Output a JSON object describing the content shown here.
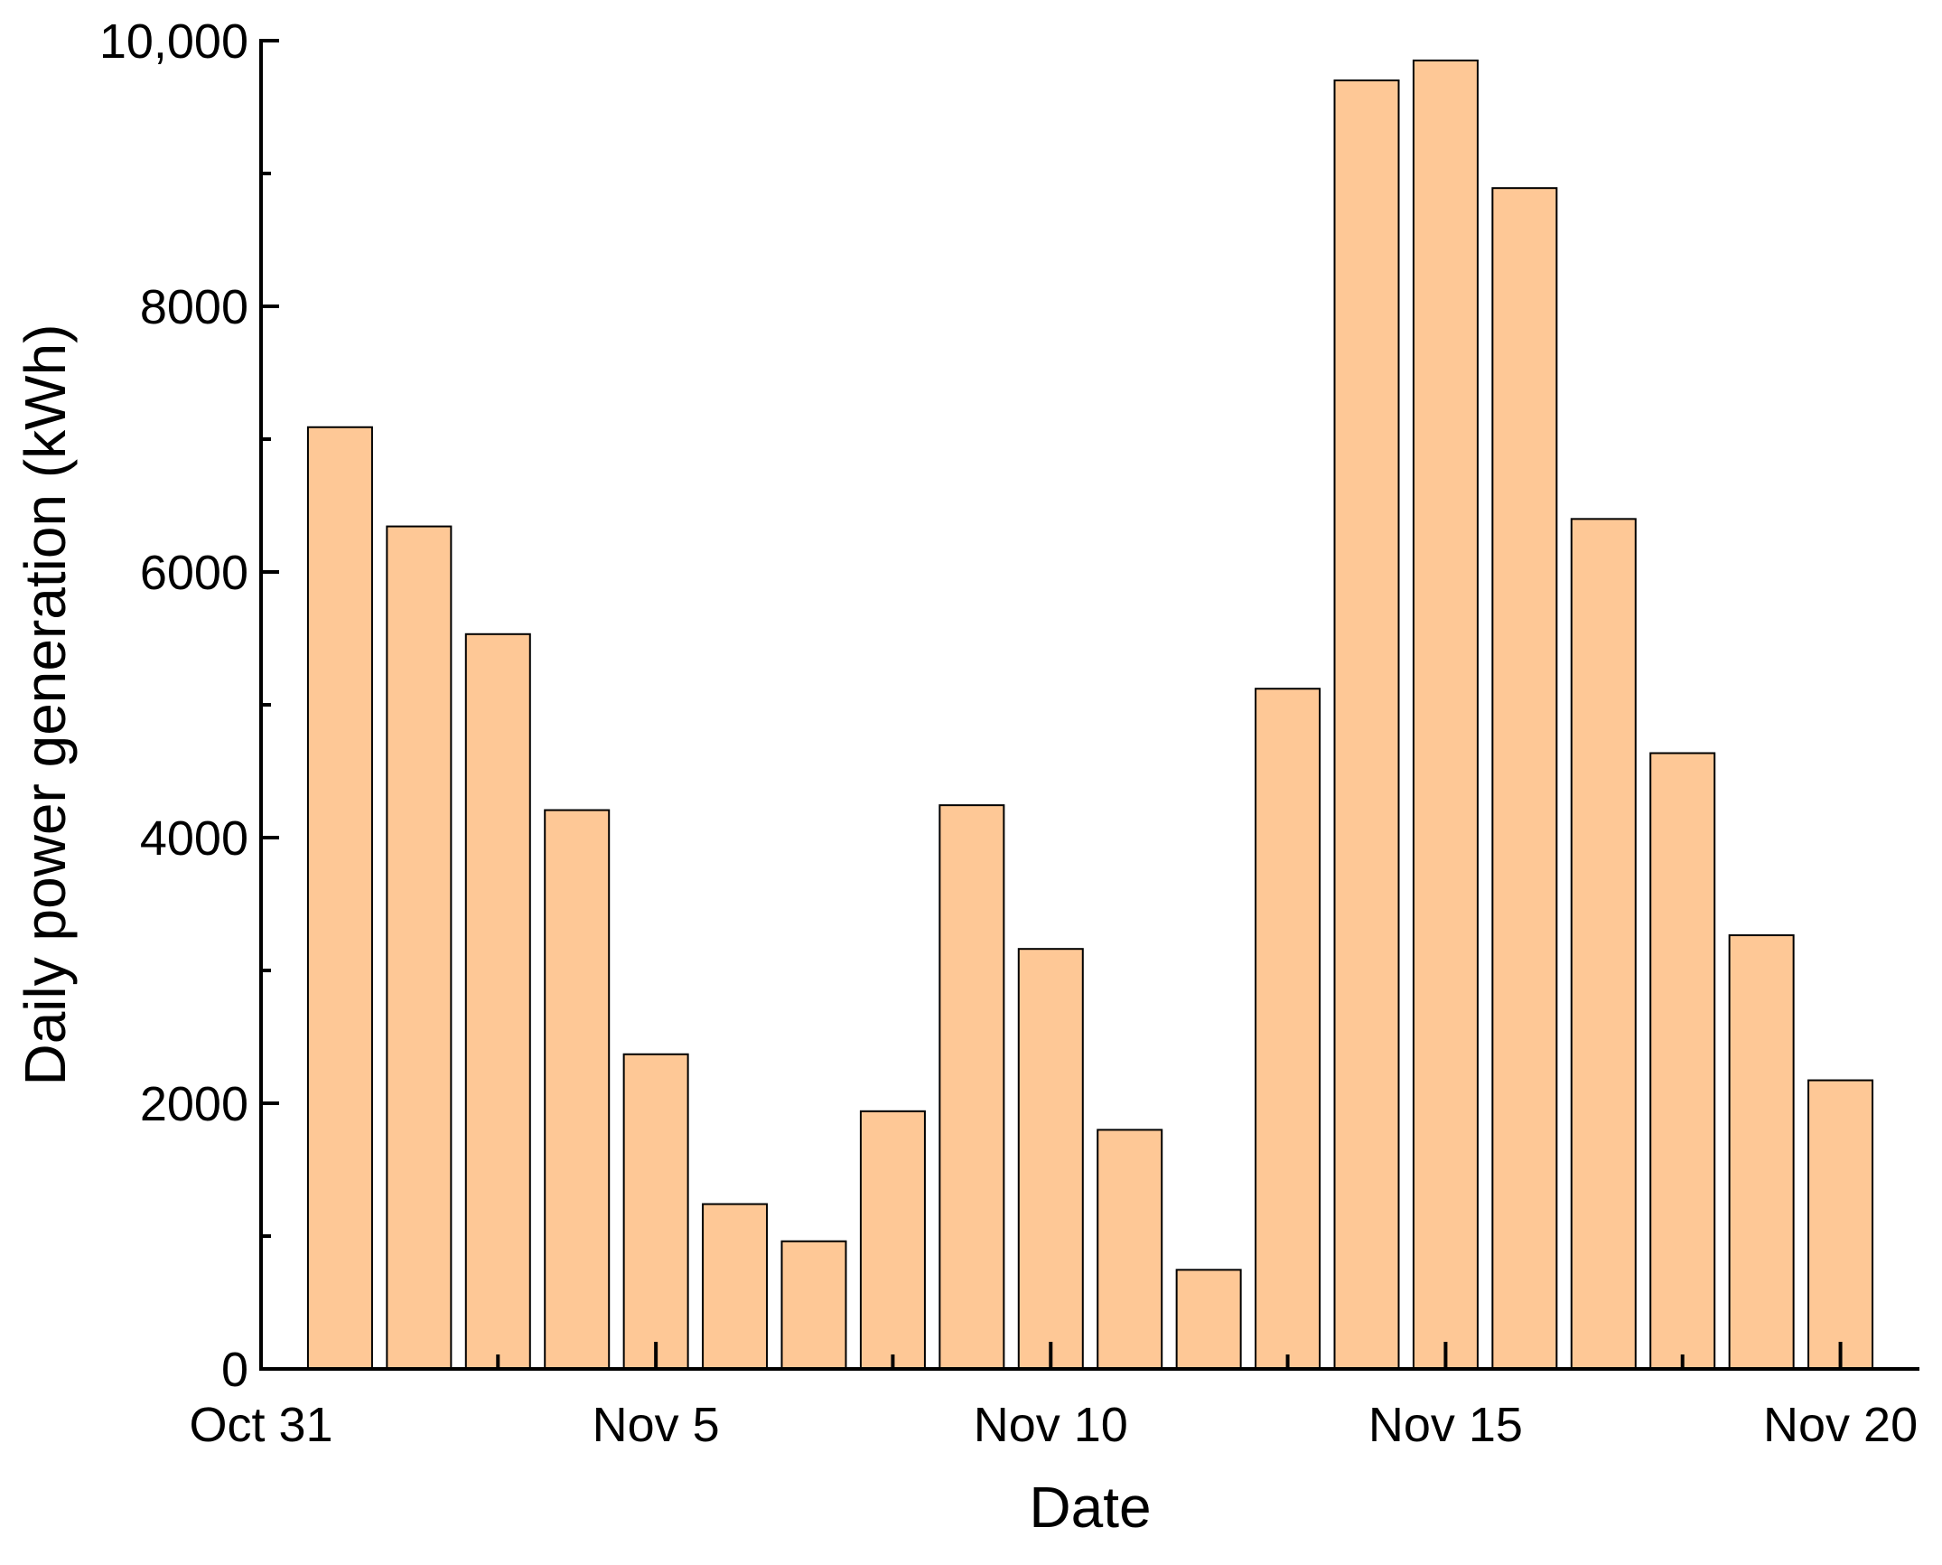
{
  "chart_data": {
    "type": "bar",
    "x_label": "Date",
    "y_label": "Daily power generation (kWh)",
    "categories": [
      "Oct 31",
      null,
      null,
      null,
      null,
      "Nov 5",
      null,
      null,
      null,
      null,
      "Nov 10",
      null,
      null,
      null,
      null,
      "Nov 15",
      null,
      null,
      null,
      null,
      "Nov 20"
    ],
    "values": [
      null,
      7090,
      6343,
      5532,
      4207,
      2369,
      1241,
      961,
      1940,
      4244,
      3162,
      1800,
      746,
      5121,
      9701,
      9851,
      8890,
      6399,
      4636,
      3265,
      2173
    ],
    "color": "#fec896",
    "ylim": [
      0,
      10000
    ],
    "yticks": [
      0,
      2000,
      4000,
      6000,
      8000,
      {
        "value": 10000,
        "label": "10,000"
      }
    ],
    "grid": false
  }
}
